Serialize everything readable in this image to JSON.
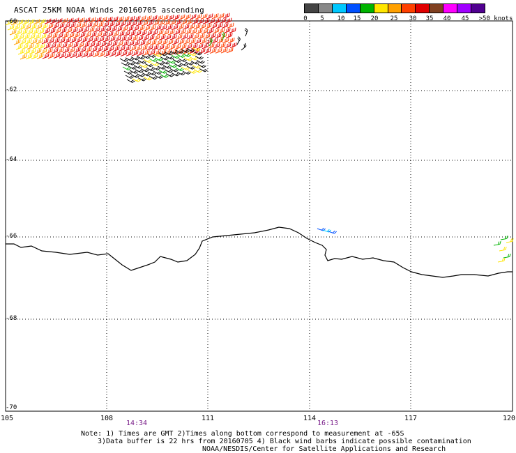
{
  "title": "ASCAT 25KM NOAA Winds 20160705 ascending",
  "legend": {
    "labels": [
      "0",
      "5",
      "10",
      "15",
      "20",
      "25",
      "30",
      "35",
      "40",
      "45",
      ">50 knots"
    ],
    "colors": [
      "#444444",
      "#888888",
      "#00c8ff",
      "#0050ff",
      "#00b400",
      "#ffe600",
      "#ffa000",
      "#ff4000",
      "#e00000",
      "#804020",
      "#ff00ff",
      "#a000ff",
      "#500090"
    ]
  },
  "axes": {
    "lat_labels": [
      "-60",
      "-62",
      "-64",
      "-66",
      "-68",
      "-70"
    ],
    "lon_labels": [
      "105",
      "108",
      "111",
      "114",
      "117",
      "120"
    ]
  },
  "times": [
    "14:34",
    "16:13"
  ],
  "notes": {
    "line1": "Note: 1) Times are GMT 2)Times along bottom correspond to measurement at -65S",
    "line2": "3)Data buffer is 22 hrs from 20160705 4) Black wind barbs indicate possible contamination",
    "line3": "NOAA/NESDIS/Center for Satellite Applications and Research"
  }
}
